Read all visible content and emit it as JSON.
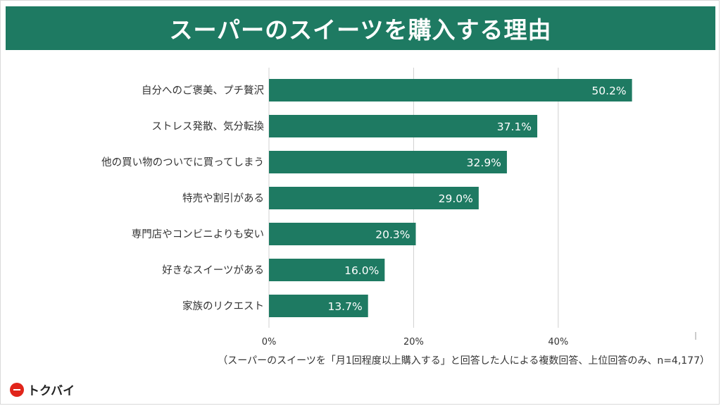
{
  "title": "スーパーのスイーツを購入する理由",
  "footnote": "（スーパーのスイーツを「月1回程度以上購入する」と回答した人による複数回答、上位回答のみ、n=4,177）",
  "brand": "トクバイ",
  "colors": {
    "bar": "#1e7a62",
    "title_bg": "#1e7a62",
    "brand_red": "#e1251b",
    "grid": "#d0d0d0"
  },
  "chart_data": {
    "type": "bar",
    "orientation": "horizontal",
    "title": "スーパーのスイーツを購入する理由",
    "categories": [
      "自分へのご褒美、プチ贅沢",
      "ストレス発散、気分転換",
      "他の買い物のついでに買ってしまう",
      "特売や割引がある",
      "専門店やコンビニよりも安い",
      "好きなスイーツがある",
      "家族のリクエスト"
    ],
    "values": [
      50.2,
      37.1,
      32.9,
      29.0,
      20.3,
      16.0,
      13.7
    ],
    "value_labels": [
      "50.2%",
      "37.1%",
      "32.9%",
      "29.0%",
      "20.3%",
      "16.0%",
      "13.7%"
    ],
    "xlim": [
      0,
      59
    ],
    "xticks": [
      0,
      20,
      40
    ],
    "xtick_labels": [
      "0%",
      "20%",
      "40%"
    ],
    "xlabel": "",
    "ylabel": "",
    "grid": true,
    "legend": "none"
  }
}
